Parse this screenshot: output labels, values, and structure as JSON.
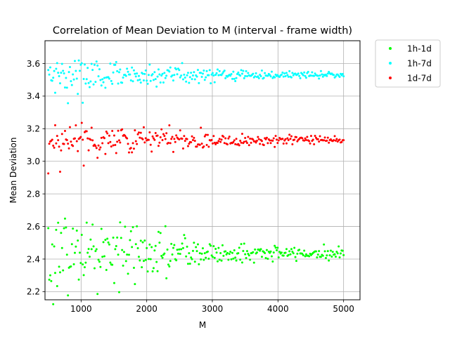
{
  "chart_data": {
    "type": "scatter",
    "title": "Correlation of Mean Deviation to M (interval - frame width)",
    "xlabel": "M",
    "ylabel": "Mean Deviation",
    "xlim": [
      450,
      5250
    ],
    "ylim": [
      2.15,
      3.74
    ],
    "xticks": [
      1000,
      2000,
      3000,
      4000,
      5000
    ],
    "yticks": [
      2.2,
      2.4,
      2.6,
      2.8,
      3.0,
      3.2,
      3.4,
      3.6
    ],
    "grid": true,
    "legend_position": "outside upper right",
    "x_range": [
      500,
      5000
    ],
    "x_step": 15,
    "series": [
      {
        "name": "1h-1d",
        "color": "#00ff00",
        "center": 2.435,
        "spread_start": 0.2,
        "spread_end": 0.022
      },
      {
        "name": "1h-7d",
        "color": "#00ffff",
        "center": 3.53,
        "spread_start": 0.09,
        "spread_end": 0.012
      },
      {
        "name": "1d-7d",
        "color": "#ff0000",
        "center": 3.13,
        "spread_start": 0.09,
        "spread_end": 0.018
      }
    ]
  }
}
